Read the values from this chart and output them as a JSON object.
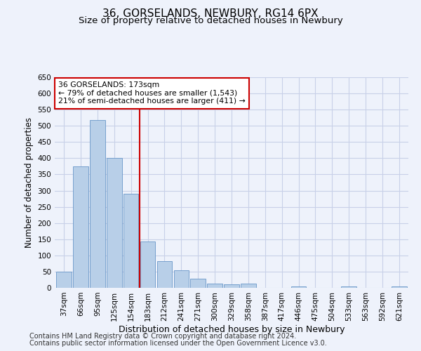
{
  "title_line1": "36, GORSELANDS, NEWBURY, RG14 6PX",
  "title_line2": "Size of property relative to detached houses in Newbury",
  "xlabel": "Distribution of detached houses by size in Newbury",
  "ylabel": "Number of detached properties",
  "categories": [
    "37sqm",
    "66sqm",
    "95sqm",
    "125sqm",
    "154sqm",
    "183sqm",
    "212sqm",
    "241sqm",
    "271sqm",
    "300sqm",
    "329sqm",
    "358sqm",
    "387sqm",
    "417sqm",
    "446sqm",
    "475sqm",
    "504sqm",
    "533sqm",
    "563sqm",
    "592sqm",
    "621sqm"
  ],
  "values": [
    50,
    375,
    518,
    401,
    291,
    143,
    82,
    55,
    29,
    12,
    10,
    13,
    0,
    0,
    5,
    0,
    0,
    5,
    0,
    0,
    5
  ],
  "bar_color": "#b8cfe8",
  "bar_edge_color": "#6896c8",
  "vline_x_index": 4.5,
  "vline_color": "#cc0000",
  "annotation_text": "36 GORSELANDS: 173sqm\n← 79% of detached houses are smaller (1,543)\n21% of semi-detached houses are larger (411) →",
  "annotation_box_color": "#ffffff",
  "annotation_box_edge_color": "#cc0000",
  "ylim": [
    0,
    650
  ],
  "yticks": [
    0,
    50,
    100,
    150,
    200,
    250,
    300,
    350,
    400,
    450,
    500,
    550,
    600,
    650
  ],
  "footer_line1": "Contains HM Land Registry data © Crown copyright and database right 2024.",
  "footer_line2": "Contains public sector information licensed under the Open Government Licence v3.0.",
  "bg_color": "#eef2fb",
  "grid_color": "#c8d0e8",
  "title1_fontsize": 11,
  "title2_fontsize": 9.5,
  "xlabel_fontsize": 9,
  "ylabel_fontsize": 8.5,
  "tick_fontsize": 7.5,
  "footer_fontsize": 7
}
